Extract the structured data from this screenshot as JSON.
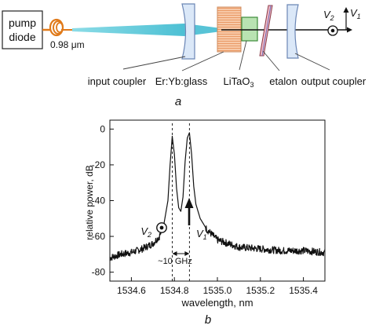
{
  "panel_a": {
    "pump_label_line1": "pump",
    "pump_label_line2": "diode",
    "wavelength_value": "0.98",
    "wavelength_unit": "μm",
    "v1_label": "V",
    "v1_sub": "1",
    "v2_label": "V",
    "v2_sub": "2",
    "labels": {
      "input_coupler": "input coupler",
      "glass": "Er:Yb:glass",
      "crystal_main": "LiTaO",
      "crystal_sub": "3",
      "etalon": "etalon",
      "output_coupler": "output coupler"
    },
    "caption": "a"
  },
  "panel_b": {
    "caption": "b",
    "spacing_label": "~10 GHz",
    "v1_label": "V",
    "v1_sub": "1",
    "v2_label": "V",
    "v2_sub": "2",
    "chart_data": {
      "type": "line",
      "xlabel": "wavelength, nm",
      "ylabel": "relative power, dB",
      "xlim": [
        1534.5,
        1535.5
      ],
      "ylim": [
        -85,
        5
      ],
      "xticks": [
        "1534.6",
        "1534.8",
        "1535.0",
        "1535.2",
        "1535.4"
      ],
      "xtick_values": [
        1534.6,
        1534.8,
        1535.0,
        1535.2,
        1535.4
      ],
      "yticks": [
        "0",
        "-20",
        "-40",
        "-60",
        "-80"
      ],
      "ytick_values": [
        0,
        -20,
        -40,
        -60,
        -80
      ],
      "peaks": [
        1534.79,
        1534.87
      ],
      "series": [
        {
          "x": [
            1534.5,
            1534.55,
            1534.6,
            1534.65,
            1534.7,
            1534.73,
            1534.75,
            1534.77,
            1534.78,
            1534.79,
            1534.8,
            1534.81,
            1534.82,
            1534.83,
            1534.84,
            1534.85,
            1534.86,
            1534.87,
            1534.88,
            1534.89,
            1534.9,
            1534.92,
            1534.95,
            1535.0,
            1535.05,
            1535.1,
            1535.2,
            1535.3,
            1535.4,
            1535.5
          ],
          "y": [
            -72,
            -70,
            -69,
            -67,
            -64,
            -60,
            -54,
            -40,
            -20,
            -4,
            -14,
            -33,
            -44,
            -46,
            -38,
            -18,
            -5,
            -2,
            -14,
            -32,
            -42,
            -50,
            -56,
            -62,
            -64,
            -66,
            -67,
            -68,
            -68,
            -69
          ]
        }
      ]
    }
  }
}
